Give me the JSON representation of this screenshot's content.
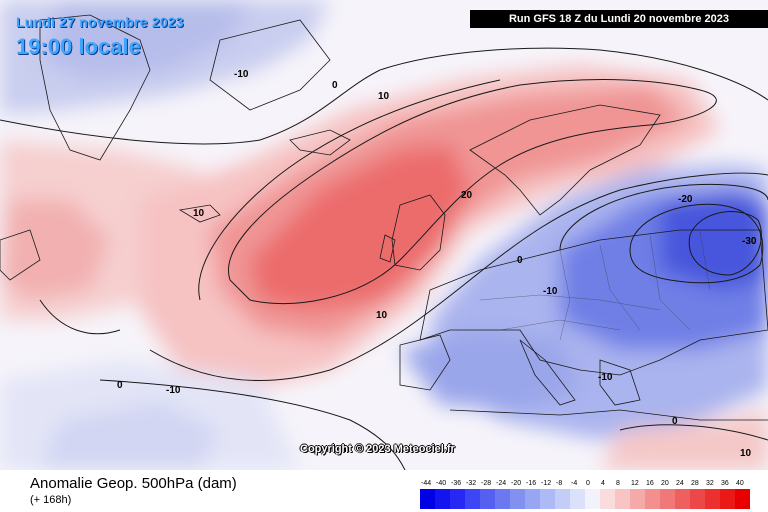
{
  "header": {
    "date": "Lundi 27 novembre 2023",
    "local_time": "19:00 locale",
    "run_info": "Run GFS 18 Z du Lundi 20 novembre 2023"
  },
  "map": {
    "contour_labels": [
      "-10",
      "0",
      "10",
      "10",
      "20",
      "10",
      "0",
      "-10",
      "0",
      "-10",
      "-20",
      "-30",
      "10",
      "-10",
      "0"
    ],
    "copyright": "Copyright © 2023 Meteociel.fr"
  },
  "footer": {
    "field_title": "Anomalie Geop. 500hPa (dam)",
    "lead_time": "(+ 168h)"
  },
  "colorbar": {
    "ticks": [
      "-44",
      "-40",
      "-36",
      "-32",
      "-28",
      "-24",
      "-20",
      "-16",
      "-12",
      "-8",
      "-4",
      "0",
      "4",
      "8",
      "12",
      "16",
      "20",
      "24",
      "28",
      "32",
      "36",
      "40"
    ],
    "colors": [
      "#0000e6",
      "#1414f0",
      "#2828f5",
      "#3c46f5",
      "#5560f0",
      "#6b78f0",
      "#8290f0",
      "#98a5f2",
      "#aebaf5",
      "#c4cdf7",
      "#dbe1fa",
      "#f2f2fa",
      "#fadcdc",
      "#f8c4c4",
      "#f5aaaa",
      "#f29090",
      "#f07878",
      "#ee6060",
      "#ed4848",
      "#ec3030",
      "#eb1818",
      "#e80000"
    ]
  }
}
